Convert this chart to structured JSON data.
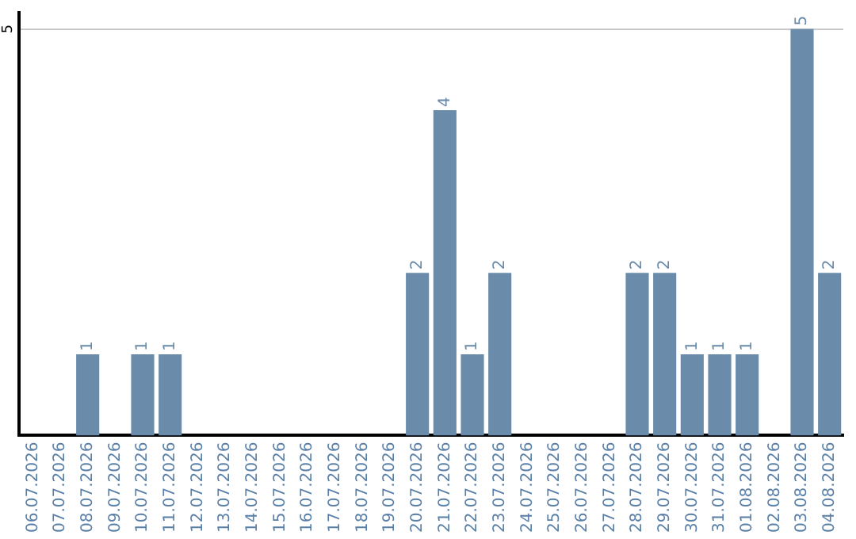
{
  "chart_data": {
    "type": "bar",
    "categories": [
      "06.07.2026",
      "07.07.2026",
      "08.07.2026",
      "09.07.2026",
      "10.07.2026",
      "11.07.2026",
      "12.07.2026",
      "13.07.2026",
      "14.07.2026",
      "15.07.2026",
      "16.07.2026",
      "17.07.2026",
      "18.07.2026",
      "19.07.2026",
      "20.07.2026",
      "21.07.2026",
      "22.07.2026",
      "23.07.2026",
      "24.07.2026",
      "25.07.2026",
      "26.07.2026",
      "27.07.2026",
      "28.07.2026",
      "29.07.2026",
      "30.07.2026",
      "31.07.2026",
      "01.08.2026",
      "02.08.2026",
      "03.08.2026",
      "04.08.2026"
    ],
    "values": [
      0,
      0,
      1,
      0,
      1,
      1,
      0,
      0,
      0,
      0,
      0,
      0,
      0,
      0,
      2,
      4,
      1,
      2,
      0,
      0,
      0,
      0,
      2,
      2,
      1,
      1,
      1,
      0,
      5,
      2
    ],
    "value_labels": [
      null,
      null,
      "1",
      null,
      "1",
      "1",
      null,
      null,
      null,
      null,
      null,
      null,
      null,
      null,
      "2",
      "4",
      "1",
      "2",
      null,
      null,
      null,
      null,
      "2",
      "2",
      "1",
      "1",
      "1",
      null,
      "5",
      "2"
    ],
    "color": "#6a8caa",
    "ylim": [
      0,
      5.2
    ],
    "yticks": [
      5
    ],
    "grid": "y",
    "legend": false
  }
}
